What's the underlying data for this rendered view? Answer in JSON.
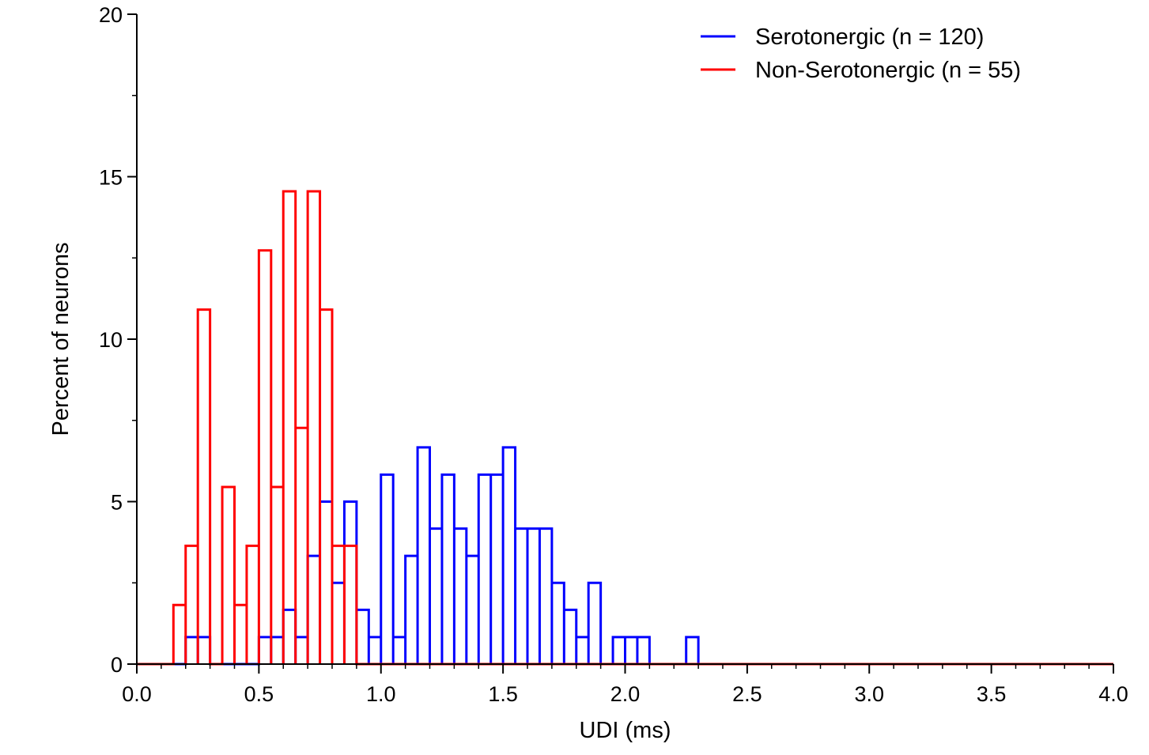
{
  "chart_data": {
    "type": "histogram-step",
    "title": "",
    "xlabel": "UDI (ms)",
    "ylabel": "Percent of neurons",
    "xlim": [
      0,
      4
    ],
    "ylim": [
      0,
      20
    ],
    "x_ticks": [
      0,
      0.5,
      1,
      1.5,
      2,
      2.5,
      3,
      3.5,
      4
    ],
    "x_tick_labels": [
      "0.0",
      "0.5",
      "1.0",
      "1.5",
      "2.0",
      "2.5",
      "3.0",
      "3.5",
      "4.0"
    ],
    "y_ticks": [
      0,
      5,
      10,
      15,
      20
    ],
    "y_tick_labels": [
      "0",
      "5",
      "10",
      "15",
      "20"
    ],
    "bin_width": 0.05,
    "legend_position": "top-right",
    "grid": false,
    "series": [
      {
        "name": "Serotonergic (n = 120)",
        "color": "#0000ff",
        "bin_starts": [
          0.2,
          0.25,
          0.3,
          0.35,
          0.4,
          0.45,
          0.5,
          0.55,
          0.6,
          0.65,
          0.7,
          0.75,
          0.8,
          0.85,
          0.9,
          0.95,
          1.0,
          1.05,
          1.1,
          1.15,
          1.2,
          1.25,
          1.3,
          1.35,
          1.4,
          1.45,
          1.5,
          1.55,
          1.6,
          1.65,
          1.7,
          1.75,
          1.8,
          1.85,
          1.9,
          1.95,
          2.0,
          2.05,
          2.1,
          2.15,
          2.2,
          2.25
        ],
        "values": [
          0.83,
          0.83,
          0,
          0,
          0,
          0,
          0.83,
          0.83,
          1.67,
          0.83,
          3.33,
          5.0,
          2.5,
          5.0,
          1.67,
          0.83,
          5.83,
          0.83,
          3.33,
          6.67,
          4.17,
          5.83,
          4.17,
          3.33,
          5.83,
          5.83,
          6.67,
          4.17,
          4.17,
          4.17,
          2.5,
          1.67,
          0.83,
          2.5,
          0,
          0.83,
          0.83,
          0.83,
          0,
          0,
          0,
          0.83
        ]
      },
      {
        "name": "Non-Serotonergic (n = 55)",
        "color": "#ff0000",
        "bin_starts": [
          0.15,
          0.2,
          0.25,
          0.3,
          0.35,
          0.4,
          0.45,
          0.5,
          0.55,
          0.6,
          0.65,
          0.7,
          0.75,
          0.8,
          0.85
        ],
        "values": [
          1.82,
          3.64,
          10.91,
          0,
          5.45,
          1.82,
          3.64,
          12.73,
          5.45,
          14.55,
          7.27,
          14.55,
          10.91,
          3.64,
          3.64
        ]
      }
    ]
  }
}
